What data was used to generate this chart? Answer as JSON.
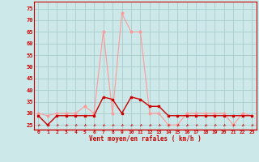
{
  "hours": [
    0,
    1,
    2,
    3,
    4,
    5,
    6,
    7,
    8,
    9,
    10,
    11,
    12,
    13,
    14,
    15,
    16,
    17,
    18,
    19,
    20,
    21,
    22,
    23
  ],
  "mean_wind": [
    29,
    25,
    29,
    29,
    29,
    29,
    29,
    37,
    36,
    30,
    37,
    36,
    33,
    33,
    29,
    29,
    29,
    29,
    29,
    29,
    29,
    29,
    29,
    29
  ],
  "gusts": [
    30,
    29,
    30,
    30,
    30,
    33,
    30,
    65,
    30,
    73,
    65,
    65,
    30,
    30,
    25,
    25,
    30,
    30,
    30,
    30,
    30,
    25,
    30,
    29
  ],
  "bg_color": "#cce8e8",
  "grid_color": "#aacccc",
  "mean_color": "#cc0000",
  "gust_color": "#ff9999",
  "arrow_color": "#cc2222",
  "xlabel": "Vent moyen/en rafales ( km/h )",
  "ylim": [
    23,
    78
  ],
  "yticks": [
    25,
    30,
    35,
    40,
    45,
    50,
    55,
    60,
    65,
    70,
    75
  ],
  "xlim": [
    -0.5,
    23.5
  ]
}
